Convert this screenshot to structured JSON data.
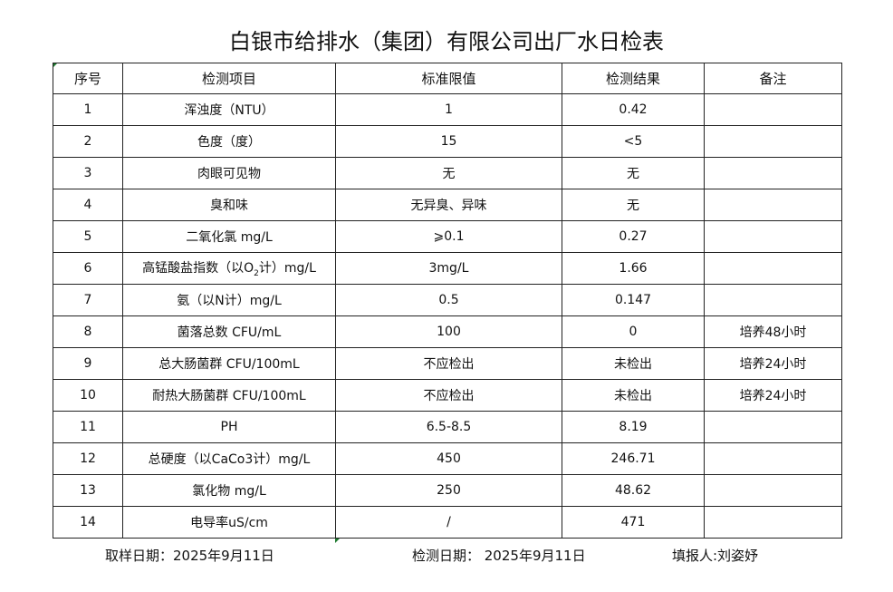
{
  "title": "白银市给排水（集团）有限公司出厂水日检表",
  "headers": [
    "序号",
    "检测项目",
    "标准限值",
    "检测结果",
    "备注"
  ],
  "rows": [
    [
      "1",
      "浑浊度（NTU）",
      "1",
      "0.42",
      ""
    ],
    [
      "2",
      "色度（度）",
      "15",
      "<5",
      ""
    ],
    [
      "3",
      "肉眼可见物",
      "无",
      "无",
      ""
    ],
    [
      "4",
      "臭和味",
      "无异臭、异味",
      "无",
      ""
    ],
    [
      "5",
      "二氧化氯 mg/L",
      "⩾0.1",
      "0.27",
      ""
    ],
    [
      "6",
      {
        "pre": "高锰酸盐指数（以O",
        "sub": "2",
        "post": "计）mg/L"
      },
      "3mg/L",
      "1.66",
      ""
    ],
    [
      "7",
      "氨（以N计）mg/L",
      "0.5",
      "0.147",
      ""
    ],
    [
      "8",
      "菌落总数 CFU/mL",
      "100",
      "0",
      "培养48小时"
    ],
    [
      "9",
      "总大肠菌群 CFU/100mL",
      "不应检出",
      "未检出",
      "培养24小时"
    ],
    [
      "10",
      "耐热大肠菌群 CFU/100mL",
      "不应检出",
      "未检出",
      "培养24小时"
    ],
    [
      "11",
      "PH",
      "6.5-8.5",
      "8.19",
      ""
    ],
    [
      "12",
      "总硬度（以CaCo3计）mg/L",
      "450",
      "246.71",
      ""
    ],
    [
      "13",
      "氯化物 mg/L",
      "250",
      "48.62",
      ""
    ],
    [
      "14",
      "电导率uS/cm",
      "/",
      "471",
      ""
    ]
  ],
  "footer": {
    "sample_date": "取样日期：2025年9月11日",
    "test_date": "检测日期： 2025年9月11日",
    "reporter": "填报人:刘姿妤"
  }
}
